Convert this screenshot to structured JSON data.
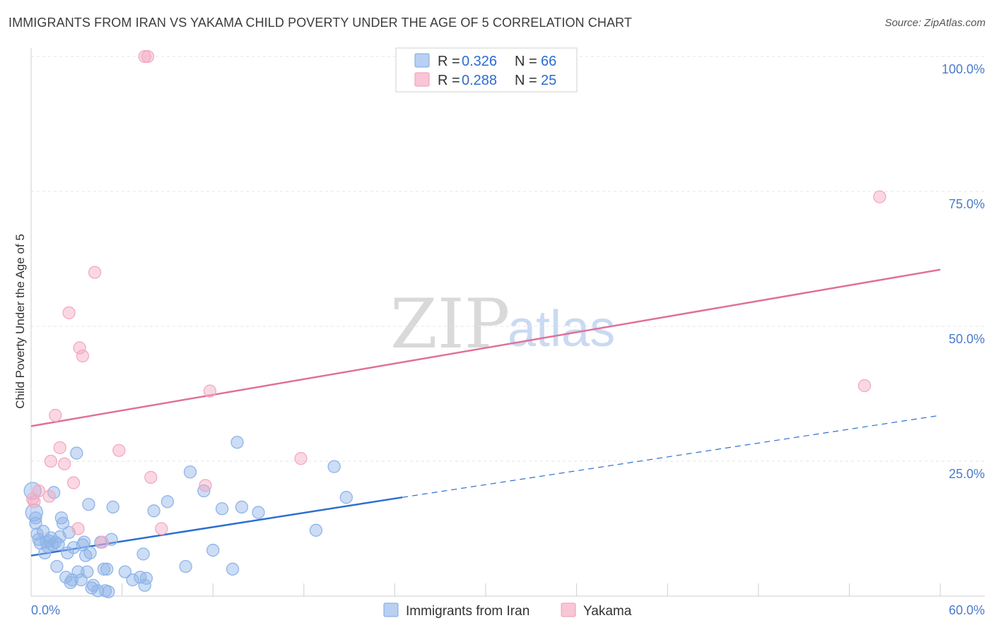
{
  "title": "IMMIGRANTS FROM IRAN VS YAKAMA CHILD POVERTY UNDER THE AGE OF 5 CORRELATION CHART",
  "source": "Source: ZipAtlas.com",
  "watermark": {
    "zip": "ZIP",
    "atlas": "atlas"
  },
  "chart_data": {
    "type": "scatter",
    "title": "IMMIGRANTS FROM IRAN VS YAKAMA CHILD POVERTY UNDER THE AGE OF 5 CORRELATION CHART",
    "xlabel": "",
    "ylabel": "Child Poverty Under the Age of 5",
    "xlim": [
      0,
      60
    ],
    "ylim": [
      0,
      100
    ],
    "x_tick_labels": [
      "0.0%",
      "60.0%"
    ],
    "y_ticks": [
      {
        "value": 25,
        "label": "25.0%"
      },
      {
        "value": 50,
        "label": "50.0%"
      },
      {
        "value": 75,
        "label": "75.0%"
      },
      {
        "value": 100,
        "label": "100.0%"
      }
    ],
    "grid": true,
    "legend_position": "top-center",
    "legend": [
      {
        "r_label": "R =",
        "r": "0.326",
        "n_label": "N =",
        "n": "66"
      },
      {
        "r_label": "R =",
        "r": "0.288",
        "n_label": "N =",
        "n": "25"
      }
    ],
    "series": [
      {
        "name": "Immigrants from Iran",
        "color": "#8fb4e8",
        "line_color": "#2d6fd0",
        "trend": {
          "x0": 0,
          "y0": 7.5,
          "x1": 24.5,
          "y1": 18.3,
          "x_dash_end": 60,
          "y_dash_end": 33.5
        },
        "points": [
          [
            0.1,
            19.5
          ],
          [
            0.2,
            15.5
          ],
          [
            0.3,
            14.5
          ],
          [
            0.4,
            11.5
          ],
          [
            0.5,
            10.5
          ],
          [
            0.6,
            9.8
          ],
          [
            0.8,
            12
          ],
          [
            0.9,
            8
          ],
          [
            1.0,
            10
          ],
          [
            1.1,
            9.2
          ],
          [
            1.2,
            10.2
          ],
          [
            1.4,
            9.5
          ],
          [
            1.5,
            19.2
          ],
          [
            1.6,
            10
          ],
          [
            1.7,
            5.5
          ],
          [
            1.8,
            9.6
          ],
          [
            1.9,
            11
          ],
          [
            2.0,
            14.5
          ],
          [
            2.1,
            13.5
          ],
          [
            2.3,
            3.5
          ],
          [
            2.4,
            8
          ],
          [
            2.5,
            11.8
          ],
          [
            2.6,
            2.5
          ],
          [
            2.7,
            3
          ],
          [
            2.8,
            9
          ],
          [
            3.0,
            26.5
          ],
          [
            3.1,
            4.5
          ],
          [
            3.3,
            3
          ],
          [
            3.4,
            9.5
          ],
          [
            3.5,
            10
          ],
          [
            3.6,
            7.5
          ],
          [
            3.7,
            4.5
          ],
          [
            3.8,
            17
          ],
          [
            3.9,
            8
          ],
          [
            4.0,
            1.5
          ],
          [
            4.1,
            2
          ],
          [
            4.4,
            1
          ],
          [
            4.6,
            10
          ],
          [
            4.8,
            5
          ],
          [
            4.9,
            1
          ],
          [
            5.0,
            5
          ],
          [
            5.1,
            0.8
          ],
          [
            5.3,
            10.5
          ],
          [
            5.4,
            16.5
          ],
          [
            6.2,
            4.5
          ],
          [
            6.7,
            3
          ],
          [
            7.2,
            3.5
          ],
          [
            7.4,
            7.8
          ],
          [
            7.5,
            2
          ],
          [
            7.6,
            3.3
          ],
          [
            8.1,
            15.8
          ],
          [
            9.0,
            17.5
          ],
          [
            10.2,
            5.5
          ],
          [
            10.5,
            23
          ],
          [
            11.4,
            19.5
          ],
          [
            12.0,
            8.5
          ],
          [
            12.6,
            16.2
          ],
          [
            13.3,
            5
          ],
          [
            13.6,
            28.5
          ],
          [
            13.9,
            16.5
          ],
          [
            15.0,
            15.5
          ],
          [
            18.8,
            12.2
          ],
          [
            20.0,
            24
          ],
          [
            20.8,
            18.3
          ],
          [
            0.3,
            13.5
          ],
          [
            1.3,
            10.8
          ]
        ]
      },
      {
        "name": "Yakama",
        "color": "#f4a9c0",
        "line_color": "#e0709a",
        "trend": {
          "x0": 0,
          "y0": 31.5,
          "x1": 60,
          "y1": 60.5
        },
        "points": [
          [
            0.2,
            17.5
          ],
          [
            0.5,
            19.5
          ],
          [
            1.2,
            18.5
          ],
          [
            1.3,
            25
          ],
          [
            1.6,
            33.5
          ],
          [
            1.9,
            27.5
          ],
          [
            2.2,
            24.5
          ],
          [
            2.5,
            52.5
          ],
          [
            2.8,
            21
          ],
          [
            3.1,
            12.5
          ],
          [
            3.2,
            46
          ],
          [
            3.4,
            44.5
          ],
          [
            4.2,
            60
          ],
          [
            4.7,
            10
          ],
          [
            5.8,
            27
          ],
          [
            7.5,
            100
          ],
          [
            7.7,
            100
          ],
          [
            7.9,
            22
          ],
          [
            8.6,
            12.5
          ],
          [
            11.5,
            20.5
          ],
          [
            11.8,
            38
          ],
          [
            17.8,
            25.5
          ],
          [
            56.0,
            74
          ],
          [
            55.0,
            39
          ],
          [
            0.1,
            18
          ]
        ]
      }
    ]
  }
}
